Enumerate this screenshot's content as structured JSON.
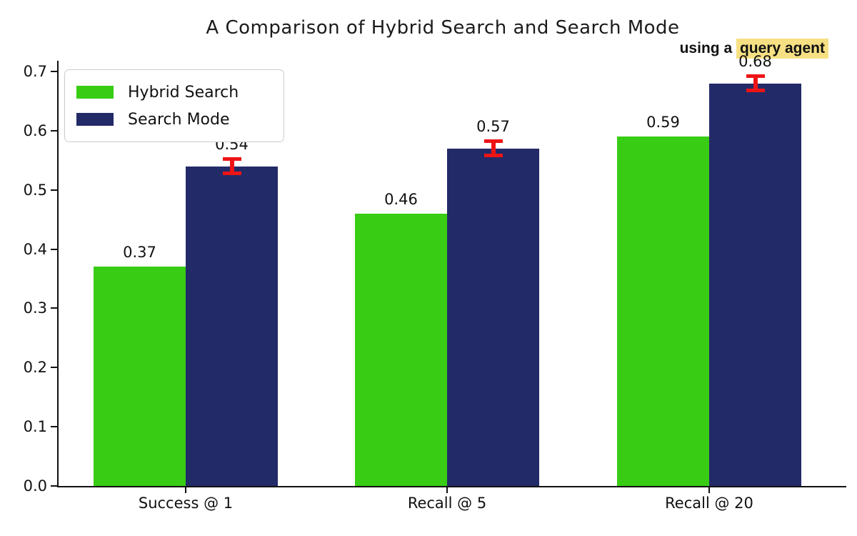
{
  "title": "A Comparison of Hybrid Search and Search Mode",
  "subtitle": {
    "prefix": "using a ",
    "highlight": "query agent",
    "highlight_color": "#f6e083"
  },
  "chart_data": {
    "type": "bar",
    "categories": [
      "Success @ 1",
      "Recall @ 5",
      "Recall @ 20"
    ],
    "series": [
      {
        "name": "Hybrid Search",
        "color": "#38cd14",
        "values": [
          0.37,
          0.46,
          0.59
        ],
        "labels": [
          "0.37",
          "0.46",
          "0.59"
        ],
        "errors": null
      },
      {
        "name": "Search Mode",
        "color": "#232a68",
        "values": [
          0.54,
          0.57,
          0.68
        ],
        "labels": [
          "0.54",
          "0.57",
          "0.68"
        ],
        "errors": [
          0.015,
          0.015,
          0.015
        ]
      }
    ],
    "title": "A Comparison of Hybrid Search and Search Mode",
    "xlabel": "",
    "ylabel": "",
    "yticks": [
      "0.0",
      "0.1",
      "0.2",
      "0.3",
      "0.4",
      "0.5",
      "0.6",
      "0.7"
    ],
    "ylim": [
      0.0,
      0.72
    ],
    "grid": false,
    "legend_position": "upper left",
    "error_bar_color": "#ee1416",
    "axis_color": "#111111"
  }
}
